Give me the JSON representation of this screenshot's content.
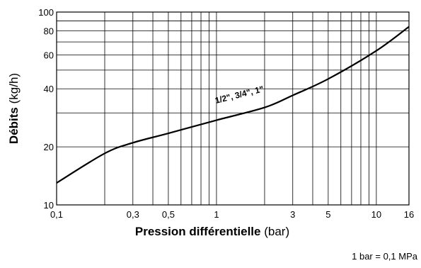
{
  "chart_data": {
    "type": "line",
    "xlog": true,
    "ylog": true,
    "grid": true,
    "x": [
      0.1,
      0.2,
      0.3,
      0.5,
      1,
      2,
      3,
      5,
      10,
      16
    ],
    "series": [
      {
        "name": "1/2\", 3/4\", 1\"",
        "color": "#000000",
        "values": [
          13,
          18.5,
          21,
          23.5,
          27.5,
          32,
          37,
          45,
          63,
          84
        ]
      }
    ],
    "xlim": [
      0.1,
      16
    ],
    "xticks": [
      {
        "value": 0.1,
        "label": "0,1"
      },
      {
        "value": 0.3,
        "label": "0,3"
      },
      {
        "value": 0.5,
        "label": "0,5"
      },
      1,
      3,
      5,
      10,
      16
    ],
    "xgrid": [
      0.2,
      0.4,
      0.6,
      0.7,
      0.8,
      0.9,
      2,
      4,
      6,
      7,
      8,
      9
    ],
    "ylim": [
      10,
      100
    ],
    "yticks": [
      10,
      20,
      40,
      60,
      80,
      100
    ],
    "ygrid": [
      30,
      50,
      70,
      90
    ],
    "ylabel_bold": "Débits",
    "ylabel_unit": "(kg/h)",
    "xlabel_bold": "Pression différentielle",
    "xlabel_unit": "(bar)",
    "note": "1 bar = 0,1 MPa"
  }
}
